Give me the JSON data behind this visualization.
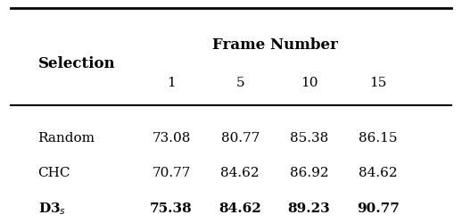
{
  "col_header_top": "Frame Number",
  "col_header_sub": [
    "1",
    "5",
    "10",
    "15"
  ],
  "row_header_label": "Selection",
  "rows": [
    {
      "label": "Random",
      "bold": false,
      "values": [
        "73.08",
        "80.77",
        "85.38",
        "86.15"
      ]
    },
    {
      "label": "CHC",
      "bold": false,
      "values": [
        "70.77",
        "84.62",
        "86.92",
        "84.62"
      ]
    },
    {
      "label": "D3s",
      "bold": true,
      "values": [
        "75.38",
        "84.62",
        "89.23",
        "90.77"
      ]
    }
  ],
  "bg_color": "#ffffff",
  "text_color": "#000000",
  "font_size": 11,
  "header_font_size": 11
}
